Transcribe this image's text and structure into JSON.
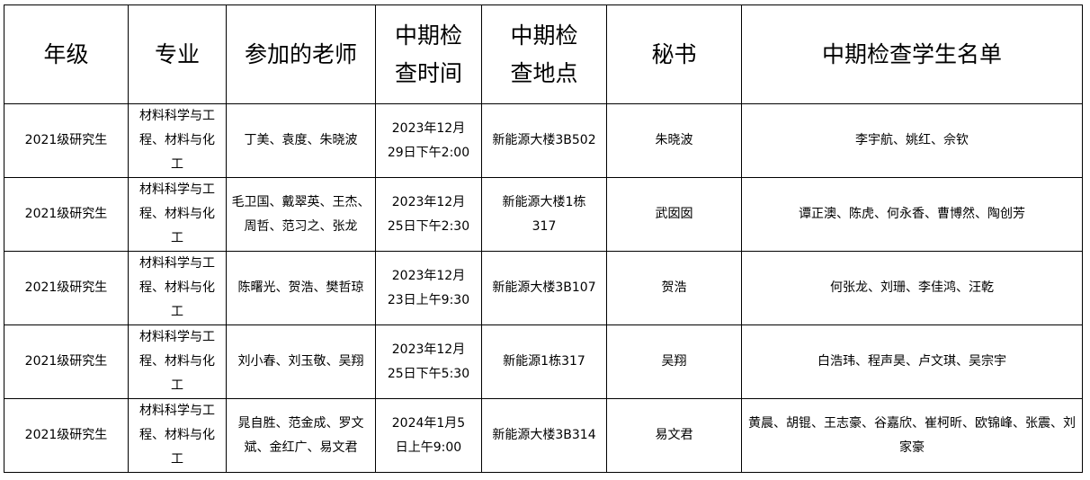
{
  "headers": [
    "年级",
    "专业",
    "参加的老师",
    "中期检查时间",
    "中期检查地点",
    "秘书",
    "中期检查学生名单"
  ],
  "rows": [
    {
      "grade": "2021级研究生",
      "major": "材料科学与工程、材料与化工",
      "teachers": "丁美、袁度、朱晓波",
      "time": "2023年12月29日下午2:00",
      "place": "新能源大楼3B502",
      "secretary": "朱晓波",
      "students": "李宇航、姚红、佘钦"
    },
    {
      "grade": "2021级研究生",
      "major": "材料科学与工程、材料与化工",
      "teachers": "毛卫国、戴翠英、王杰、周哲、范习之、张龙",
      "time": "2023年12月25日下午2:30",
      "place": "新能源大楼1栋317",
      "secretary": "武囡囡",
      "students": "谭正澳、陈虎、何永香、曹博然、陶创芳"
    },
    {
      "grade": "2021级研究生",
      "major": "材料科学与工程、材料与化工",
      "teachers": "陈曙光、贺浩、樊哲琼",
      "time": "2023年12月23日上午9:30",
      "place": "新能源大楼3B107",
      "secretary": "贺浩",
      "students": "何张龙、刘珊、李佳鸿、汪乾"
    },
    {
      "grade": "2021级研究生",
      "major": "材料科学与工程、材料与化工",
      "teachers": "刘小春、刘玉敬、吴翔",
      "time": "2023年12月25日下午5:30",
      "place": "新能源1栋317",
      "secretary": "吴翔",
      "students": "白浩玮、程声昊、卢文琪、吴宗宇"
    },
    {
      "grade": "2021级研究生",
      "major": "材料科学与工程、材料与化工",
      "teachers": "晁自胜、范金成、罗文斌、金红广、易文君",
      "time": "2024年1月5日上午9:00",
      "place": "新能源大楼3B314",
      "secretary": "易文君",
      "students": "黄晨、胡锟、王志豪、谷嘉欣、崔柯昕、欧锦峰、张震、刘家豪"
    }
  ]
}
